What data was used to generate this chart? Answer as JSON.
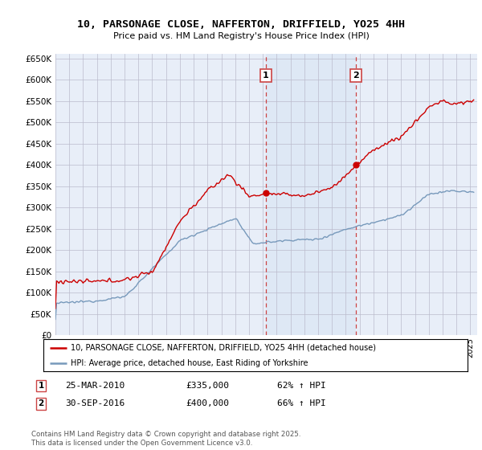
{
  "title": "10, PARSONAGE CLOSE, NAFFERTON, DRIFFIELD, YO25 4HH",
  "subtitle": "Price paid vs. HM Land Registry's House Price Index (HPI)",
  "property_label": "10, PARSONAGE CLOSE, NAFFERTON, DRIFFIELD, YO25 4HH (detached house)",
  "hpi_label": "HPI: Average price, detached house, East Riding of Yorkshire",
  "sale1_date": "25-MAR-2010",
  "sale1_price": 335000,
  "sale1_pct": "62% ↑ HPI",
  "sale1_x": 2010.2,
  "sale2_date": "30-SEP-2016",
  "sale2_price": 400000,
  "sale2_pct": "66% ↑ HPI",
  "sale2_x": 2016.75,
  "xmin": 1995,
  "xmax": 2025.5,
  "ymin": 0,
  "ymax": 660000,
  "copyright_text": "Contains HM Land Registry data © Crown copyright and database right 2025.\nThis data is licensed under the Open Government Licence v3.0.",
  "background_color": "#e8eef8",
  "red_color": "#cc0000",
  "blue_color": "#7799bb",
  "grid_color": "#bbbbcc",
  "dashed_line_color": "#cc4444",
  "span_color": "#dde8f5"
}
